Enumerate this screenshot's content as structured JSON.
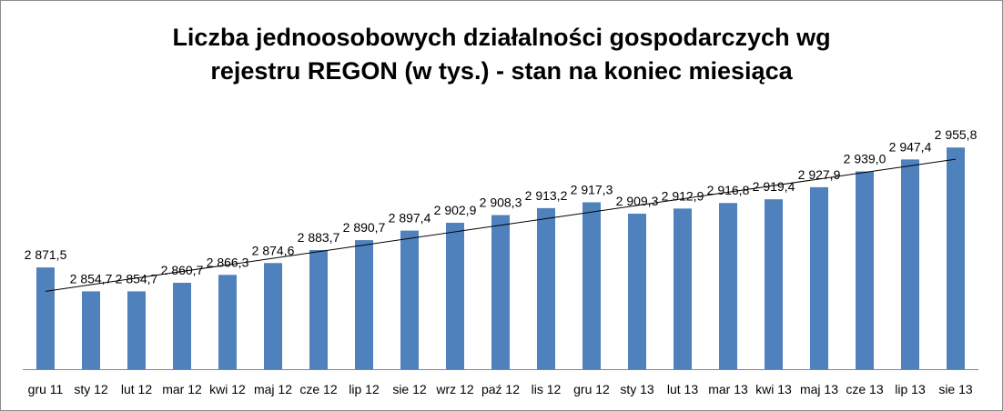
{
  "chart_data": {
    "type": "bar",
    "title_lines": [
      "Liczba jednoosobowych działalności gospodarczych wg",
      "rejestru REGON (w tys.) - stan na koniec miesiąca"
    ],
    "categories": [
      "gru 11",
      "sty 12",
      "lut 12",
      "mar 12",
      "kwi 12",
      "maj 12",
      "cze 12",
      "lip 12",
      "sie 12",
      "wrz 12",
      "paź 12",
      "lis 12",
      "gru 12",
      "sty 13",
      "lut 13",
      "mar 13",
      "kwi 13",
      "maj 13",
      "cze 13",
      "lip 13",
      "sie 13"
    ],
    "values": [
      2871.5,
      2854.7,
      2854.7,
      2860.7,
      2866.3,
      2874.6,
      2883.7,
      2890.7,
      2897.4,
      2902.9,
      2908.3,
      2913.2,
      2917.3,
      2909.3,
      2912.9,
      2916.8,
      2919.4,
      2927.9,
      2939.0,
      2947.4,
      2955.8
    ],
    "data_labels": [
      "2 871,5",
      "2 854,7",
      "2 854,7",
      "2 860,7",
      "2 866,3",
      "2 874,6",
      "2 883,7",
      "2 890,7",
      "2 897,4",
      "2 902,9",
      "2 908,3",
      "2 913,2",
      "2 917,3",
      "2 909,3",
      "2 912,9",
      "2 916,8",
      "2 919,4",
      "2 927,9",
      "2 939,0",
      "2 947,4",
      "2 955,8"
    ],
    "ylim": [
      2800,
      2970
    ],
    "y_axis_visible": false,
    "grid": false,
    "legend": "none",
    "trendline": "linear",
    "colors": {
      "bar": "#4f81bd",
      "trendline": "#000000",
      "axis": "#868686"
    }
  }
}
